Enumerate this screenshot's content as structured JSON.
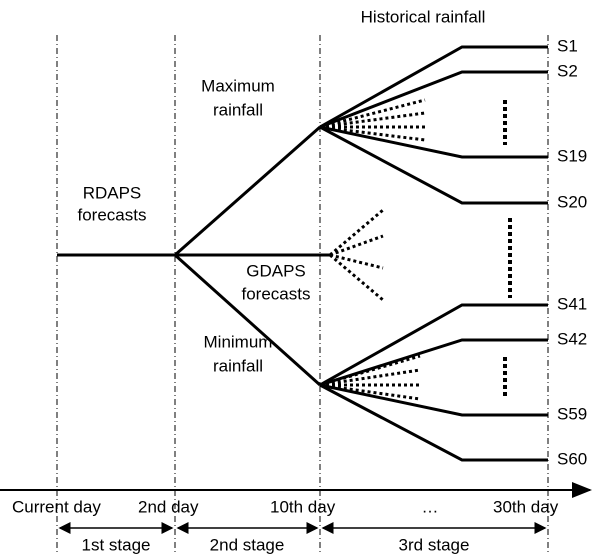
{
  "header": {
    "title": "Historical rainfall"
  },
  "labels": {
    "maximum": [
      "Maximum",
      "rainfall"
    ],
    "rdaps": [
      "RDAPS",
      "forecasts"
    ],
    "gdaps": [
      "GDAPS",
      "forecasts"
    ],
    "minimum": [
      "Minimum",
      "rainfall"
    ]
  },
  "scenarios": [
    "S1",
    "S2",
    "S19",
    "S20",
    "S41",
    "S42",
    "S59",
    "S60"
  ],
  "timeline": [
    "Current day",
    "2nd day",
    "10th day",
    "…",
    "30th day"
  ],
  "stages": [
    "1st stage",
    "2nd stage",
    "3rd stage"
  ]
}
